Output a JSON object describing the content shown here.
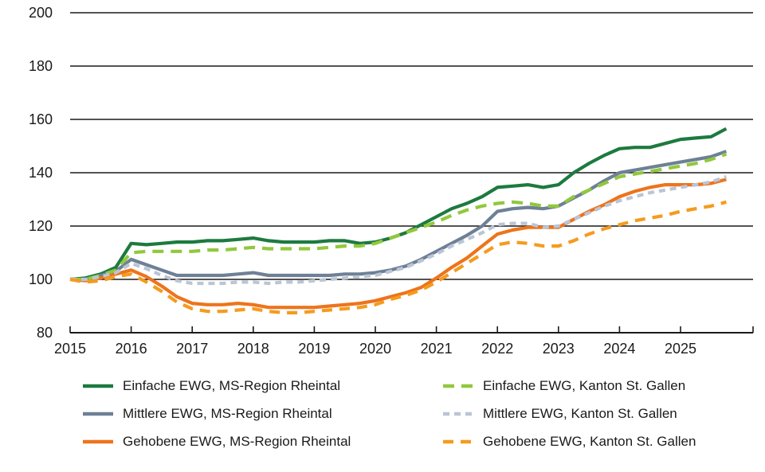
{
  "chart_data": {
    "type": "line",
    "title": "",
    "subtitle": "",
    "grid": "horizontal",
    "background": "#ffffff",
    "axis_color": "#1a1a1a",
    "x_axis": {
      "tick_labels": [
        "2015",
        "2016",
        "2017",
        "2018",
        "2019",
        "2020",
        "2021",
        "2022",
        "2023",
        "2024",
        "2025"
      ],
      "unit": "year",
      "points_per_year": 4,
      "start": 2015
    },
    "y_axis": {
      "ticks": [
        80,
        100,
        120,
        140,
        160,
        180,
        200
      ],
      "min": 80,
      "max": 200,
      "base_value": 100
    },
    "series": [
      {
        "name": "Einfache EWG, MS-Region Rheintal",
        "color": "#1d7a3f",
        "dash": "solid",
        "values": [
          100,
          100.5,
          102,
          104.5,
          113.5,
          113,
          113.5,
          114,
          114,
          114.5,
          114.5,
          115,
          115.5,
          114.5,
          114,
          114,
          114,
          114.5,
          114.5,
          113.5,
          114,
          115.5,
          117.5,
          120.5,
          123.5,
          126.5,
          128.5,
          131,
          134.5,
          135,
          135.5,
          134.5,
          135.5,
          140,
          143.5,
          146.5,
          149,
          149.5,
          149.5,
          151,
          152.5,
          153,
          153.5,
          156.5
        ]
      },
      {
        "name": "Einfache EWG, Kanton St. Gallen",
        "color": "#91c83d",
        "dash": "14 9",
        "values": [
          100,
          100,
          101.5,
          103.5,
          110,
          110.5,
          110.5,
          110.5,
          110.5,
          111,
          111,
          111.5,
          112,
          111.5,
          111.5,
          111.5,
          111.5,
          112,
          112.5,
          112.5,
          113.5,
          115.5,
          117.5,
          119.5,
          121.5,
          124,
          126,
          127.5,
          128.5,
          129,
          128.5,
          127.5,
          127.5,
          131,
          133.5,
          136,
          138.5,
          139.5,
          140.5,
          141.5,
          142.5,
          143.5,
          145,
          147
        ]
      },
      {
        "name": "Mittlere EWG, MS-Region Rheintal",
        "color": "#6e8096",
        "dash": "solid",
        "values": [
          100,
          100,
          101.5,
          103,
          107.5,
          105.5,
          103.5,
          101.5,
          101.5,
          101.5,
          101.5,
          102,
          102.5,
          101.5,
          101.5,
          101.5,
          101.5,
          101.5,
          102,
          102,
          102.5,
          103.5,
          105,
          107.5,
          110.5,
          113.5,
          116.5,
          120,
          125.5,
          126.5,
          127,
          126.5,
          127.5,
          130.5,
          133.5,
          137,
          140,
          141,
          142,
          143,
          144,
          145,
          146,
          148
        ]
      },
      {
        "name": "Mittlere EWG, Kanton St. Gallen",
        "color": "#bac5d6",
        "dash": "8 6",
        "values": [
          100,
          100,
          101,
          102.5,
          106,
          104,
          101.5,
          99.5,
          98.5,
          98.5,
          98.5,
          99,
          99,
          98.5,
          99,
          99,
          99.5,
          100,
          100.5,
          101,
          101.5,
          103,
          104.5,
          107,
          109.5,
          112.5,
          115,
          117.5,
          120.5,
          121,
          121,
          119.5,
          120,
          122.5,
          125,
          127.5,
          129.5,
          131,
          132.5,
          133.5,
          134.5,
          135.5,
          136.5,
          138.5
        ]
      },
      {
        "name": "Gehobene EWG, MS-Region Rheintal",
        "color": "#ed741c",
        "dash": "solid",
        "values": [
          100,
          99.5,
          100.5,
          102,
          103.5,
          101,
          97.5,
          93.5,
          91,
          90.5,
          90.5,
          91,
          90.5,
          89.5,
          89.5,
          89.5,
          89.5,
          90,
          90.5,
          91,
          92,
          93.5,
          95,
          97,
          100.5,
          104.5,
          108,
          112.5,
          117,
          118.5,
          119.5,
          119.5,
          119.5,
          122.5,
          125.5,
          128,
          131,
          133,
          134.5,
          135.5,
          135.5,
          135.5,
          136,
          137.5
        ]
      },
      {
        "name": "Gehobene EWG, Kanton St. Gallen",
        "color": "#f59b1e",
        "dash": "13 9",
        "values": [
          100,
          99,
          99.5,
          101,
          102,
          99,
          95.5,
          91.5,
          89,
          88,
          88,
          88.5,
          89,
          88,
          87.5,
          87.5,
          88,
          88.5,
          89,
          89.5,
          90.5,
          92.5,
          94,
          96,
          99,
          102.5,
          106,
          109.5,
          113,
          114,
          113.5,
          112.5,
          112.5,
          114.5,
          117,
          119,
          120.5,
          122,
          123,
          124,
          125.5,
          126.5,
          127.5,
          129
        ]
      }
    ],
    "legend": {
      "position": "bottom",
      "columns": 2,
      "entries": [
        "Einfache EWG, MS-Region Rheintal",
        "Einfache EWG, Kanton St. Gallen",
        "Mittlere EWG, MS-Region Rheintal",
        "Mittlere EWG, Kanton St. Gallen",
        "Gehobene EWG, MS-Region Rheintal",
        "Gehobene EWG, Kanton St. Gallen"
      ]
    }
  }
}
